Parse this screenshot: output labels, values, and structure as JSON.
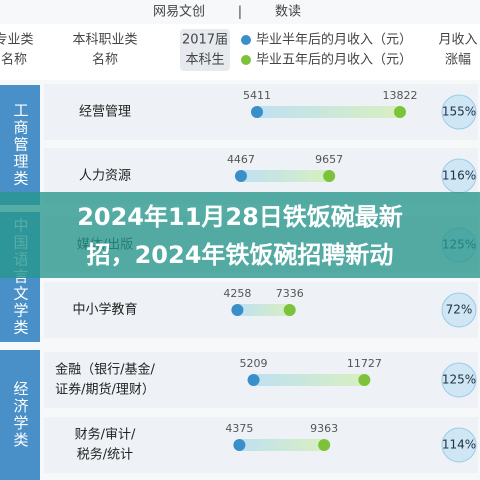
{
  "header": {
    "brand": "网易文创",
    "separator": "|",
    "column": "数读"
  },
  "columns": {
    "major_class": [
      "专业类",
      "名称"
    ],
    "occupation": [
      "本科职业类",
      "名称"
    ],
    "cohort": [
      "2017届",
      "本科生"
    ],
    "legend": [
      {
        "label": "毕业半年后的月收入（元）",
        "color": "#3a8fc9"
      },
      {
        "label": "毕业五年后的月收入（元）",
        "color": "#7cc23a"
      }
    ],
    "growth": [
      "月收入",
      "涨幅"
    ]
  },
  "groups": [
    {
      "name": "工商管理类",
      "rows": [
        {
          "occupation": [
            "经营管理"
          ],
          "half_year": 5411,
          "five_year": 13822,
          "growth": "155%"
        },
        {
          "occupation": [
            "人力资源"
          ],
          "half_year": 4467,
          "five_year": 9657,
          "growth": "116%"
        }
      ]
    },
    {
      "name": "中国语言文学类",
      "rows": [
        {
          "occupation": [
            "媒体/出版"
          ],
          "growth": "125%"
        },
        {
          "occupation": [
            "中小学教育"
          ],
          "half_year": 4258,
          "five_year": 7336,
          "growth": "72%"
        }
      ]
    },
    {
      "name": "经济学类",
      "rows": [
        {
          "occupation": [
            "金融（银行/基金/",
            "证券/期货/理财）"
          ],
          "half_year": 5209,
          "five_year": 11727,
          "growth": "125%"
        },
        {
          "occupation": [
            "财务/审计/",
            "税务/统计"
          ],
          "half_year": 4375,
          "five_year": 9363,
          "growth": "114%"
        }
      ]
    }
  ],
  "overlay": {
    "lines": [
      "2024年11月28日铁饭碗最新",
      "招，2024年铁饭碗招聘新动"
    ]
  }
}
